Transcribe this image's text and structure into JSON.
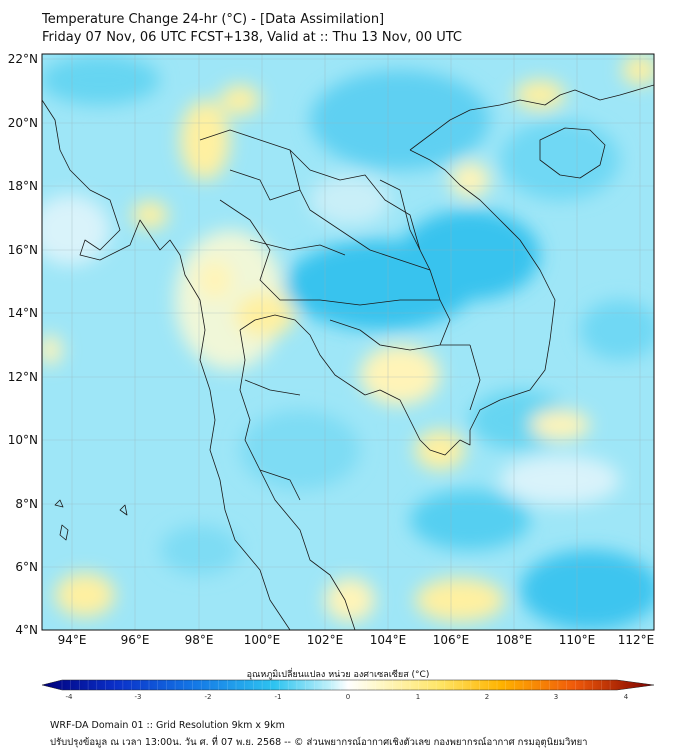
{
  "title": {
    "line1": "Temperature Change 24-hr (°C) - [Data Assimilation]",
    "line2": "Friday 07 Nov, 06 UTC FCST+138, Valid at :: Thu 13 Nov, 00 UTC"
  },
  "map": {
    "lat_labels": [
      "22°N",
      "20°N",
      "18°N",
      "16°N",
      "14°N",
      "12°N",
      "10°N",
      "8°N",
      "6°N",
      "4°N"
    ],
    "lon_labels": [
      "94°E",
      "96°E",
      "98°E",
      "100°E",
      "102°E",
      "104°E",
      "106°E",
      "108°E",
      "110°E",
      "112°E"
    ]
  },
  "colorbar": {
    "title": "อุณหภูมิเปลี่ยนแปลง หน่วย องศาเซลเซียส (°C)",
    "ticks": [
      "-4",
      "-3",
      "-2",
      "-1",
      "0",
      "1",
      "2",
      "3",
      "4"
    ]
  },
  "footer": {
    "line1": "WRF-DA Domain 01 :: Grid Resolution 9km x 9km",
    "line2": "ปรับปรุงข้อมูล ณ เวลา 13:00น. วัน ศ. ที่ 07 พ.ย. 2568 -- © ส่วนพยากรณ์อากาศเชิงตัวเลข กองพยากรณ์อากาศ กรมอุตุนิยมวิทยา"
  },
  "colors": {
    "cold_strong": "#00008b",
    "cold": "#1e90ff",
    "cool": "#5fd3f0",
    "neutral": "#e6f7fb",
    "warm": "#fff2a8",
    "hot": "#ff8c00",
    "hot_strong": "#8b0000"
  }
}
